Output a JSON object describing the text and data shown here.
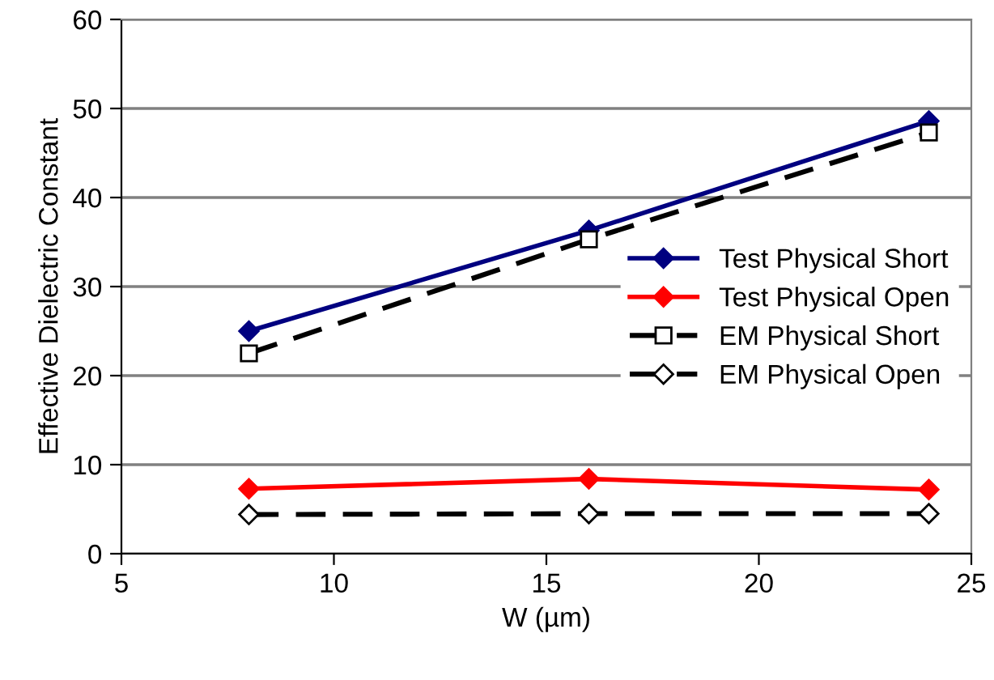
{
  "chart_data": {
    "type": "line",
    "xlabel": "W (µm)",
    "ylabel": "Effective Dielectric Constant",
    "x": [
      8,
      16,
      24
    ],
    "series": [
      {
        "name": "Test Physical Short",
        "color": "#000080",
        "values": [
          25,
          36.3,
          48.6
        ],
        "marker": "diamond",
        "line_style": "solid"
      },
      {
        "name": "Test Physical Open",
        "color": "#ff0000",
        "values": [
          7.3,
          8.4,
          7.2
        ],
        "marker": "diamond",
        "line_style": "solid"
      },
      {
        "name": "EM Physical Short",
        "color": "#000000",
        "values": [
          22.5,
          35.3,
          47.3
        ],
        "marker": "square",
        "line_style": "dashed"
      },
      {
        "name": "EM Physical Open",
        "color": "#000000",
        "values": [
          4.4,
          4.5,
          4.5
        ],
        "marker": "diamond",
        "line_style": "dashed"
      }
    ],
    "xlim": [
      5,
      25
    ],
    "ylim": [
      0,
      60
    ],
    "xticks": [
      5,
      10,
      15,
      20,
      25
    ],
    "yticks": [
      0,
      10,
      20,
      30,
      40,
      50,
      60
    ],
    "grid": "y",
    "legend": "right"
  }
}
